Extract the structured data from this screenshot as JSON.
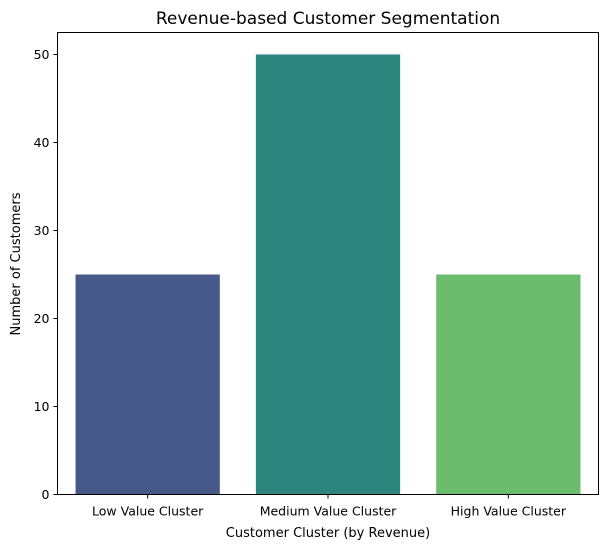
{
  "chart_data": {
    "type": "bar",
    "title": "Revenue-based Customer Segmentation",
    "xlabel": "Customer Cluster (by Revenue)",
    "ylabel": "Number of Customers",
    "categories": [
      "Low Value Cluster",
      "Medium Value Cluster",
      "High Value Cluster"
    ],
    "values": [
      25,
      50,
      25
    ],
    "colors": [
      "#46598a",
      "#2d867e",
      "#6bbd6d"
    ],
    "ylim": [
      0,
      52.5
    ],
    "yticks": [
      0,
      10,
      20,
      30,
      40,
      50
    ],
    "grid": false,
    "legend": "none"
  }
}
